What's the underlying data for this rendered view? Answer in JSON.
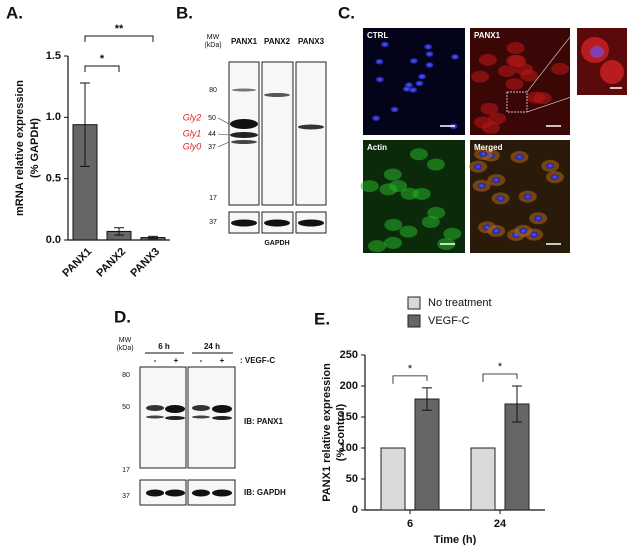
{
  "chart_data": [
    {
      "type": "bar",
      "panel": "A.",
      "ylabel": [
        "mRNA relative expression",
        "(% GAPDH)"
      ],
      "categories": [
        "PANX1",
        "PANX2",
        "PANX3"
      ],
      "values": [
        0.94,
        0.07,
        0.02
      ],
      "errors": [
        0.34,
        0.03,
        0.01
      ],
      "color": "#666666",
      "ylim": [
        0,
        1.5
      ],
      "yticks": [
        {
          "value": 0,
          "label": "0.0"
        },
        {
          "value": 0.5,
          "label": "0.5"
        },
        {
          "value": 1,
          "label": "1.0"
        },
        {
          "value": 1.5,
          "label": "1.5"
        }
      ],
      "annotations": [
        "*",
        "**"
      ]
    },
    {
      "type": "grouped_bar",
      "panel": "E.",
      "ylabel": [
        "PANX1 relative expression",
        "(% control)"
      ],
      "xlabel": "Time (h)",
      "categories": [
        "6",
        "24"
      ],
      "series": [
        {
          "name": "No treatment",
          "color": "#d9d9d9",
          "values": [
            100,
            100
          ]
        },
        {
          "name": "VEGF-C",
          "color": "#666666",
          "values": [
            179,
            171
          ],
          "errors": [
            18,
            29
          ]
        }
      ],
      "ylim": [
        0,
        250
      ],
      "yticks": [
        0,
        50,
        100,
        150,
        200,
        250
      ],
      "annotations": [
        "*",
        "*"
      ]
    }
  ],
  "panel_b": {
    "label": "B.",
    "mw": "MW",
    "unit": "(kDa)",
    "lanes": [
      "PANX1",
      "PANX2",
      "PANX3"
    ],
    "markers": [
      "80",
      "17",
      "37"
    ],
    "glyco": [
      {
        "label": "Gly2",
        "mw": "50"
      },
      {
        "label": "Gly1",
        "mw": "44"
      },
      {
        "label": "Gly0",
        "mw": "37"
      }
    ],
    "loading": "GAPDH"
  },
  "panel_c": {
    "label": "C.",
    "images": [
      "CTRL",
      "PANX1",
      "Actin",
      "Merged"
    ]
  },
  "panel_d": {
    "label": "D.",
    "mw": "MW",
    "unit": "(kDa)",
    "times": [
      "6 h",
      "24 h"
    ],
    "signs": [
      "-",
      "+",
      "-",
      "+"
    ],
    "treatment": ": VEGF-C",
    "markers": [
      "80",
      "50",
      "17",
      "37"
    ],
    "ib": [
      "IB: PANX1",
      "IB: GAPDH"
    ]
  }
}
